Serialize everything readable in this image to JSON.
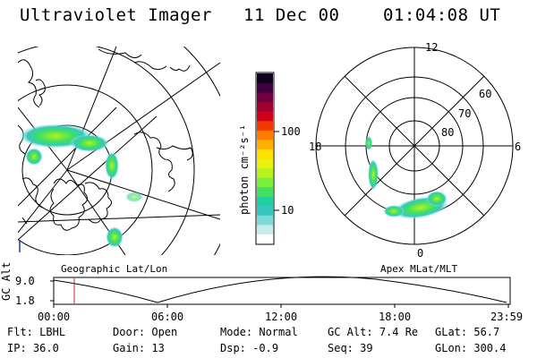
{
  "header": {
    "title": "Ultraviolet Imager",
    "date": "11 Dec 00",
    "time": "01:04:08 UT"
  },
  "geo_panel": {
    "label": "Geographic Lat/Lon"
  },
  "polar_panel": {
    "label": "Apex MLat/MLT",
    "mlt_labels": [
      "12",
      "18",
      "6",
      "0"
    ],
    "lat_labels": [
      "60",
      "70",
      "80"
    ]
  },
  "colorbar": {
    "unit_label": "photon cm⁻²s⁻¹",
    "ticks": [
      "100",
      "10"
    ],
    "colors": [
      "#ffffff",
      "#c8ecec",
      "#7fd8d8",
      "#35c8c0",
      "#20d0a0",
      "#40e060",
      "#7af03a",
      "#b8f020",
      "#e8f010",
      "#ffe000",
      "#ffb000",
      "#ff7a00",
      "#f03a00",
      "#d00018",
      "#a00030",
      "#700040",
      "#400040",
      "#100020"
    ]
  },
  "timeline": {
    "axis_label": "GC Alt",
    "y_ticks": [
      "9.0",
      "1.8"
    ],
    "x_ticks": [
      "00:00",
      "06:00",
      "12:00",
      "18:00",
      "23:59"
    ],
    "marker_color": "#cc2222"
  },
  "info": {
    "row1": [
      {
        "key": "Flt:",
        "val": "LBHL"
      },
      {
        "key": "Door:",
        "val": "Open"
      },
      {
        "key": "Mode:",
        "val": "Normal"
      },
      {
        "key": "GC Alt:",
        "val": "7.4 Re"
      },
      {
        "key": "GLat:",
        "val": "56.7"
      }
    ],
    "row2": [
      {
        "key": "IP:",
        "val": "36.0"
      },
      {
        "key": "Gain:",
        "val": "13"
      },
      {
        "key": "Dsp:",
        "val": "-0.9"
      },
      {
        "key": "Seq:",
        "val": "39"
      },
      {
        "key": "GLon:",
        "val": "300.4"
      }
    ]
  }
}
